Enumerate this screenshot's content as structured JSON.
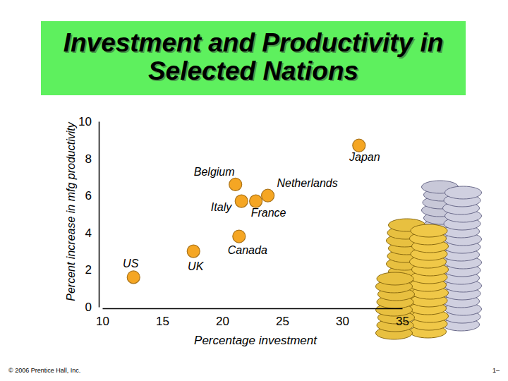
{
  "chart_data": {
    "type": "scatter",
    "title": "Investment and Productivity in Selected Nations",
    "x_label": "Percentage investment",
    "y_label": "Percent increase in mfg productivity",
    "labels": [
      "US",
      "UK",
      "Canada",
      "Italy",
      "Belgium",
      "France",
      "Netherlands",
      "Japan"
    ],
    "x": [
      12.6,
      17.6,
      21.4,
      21.6,
      21.1,
      22.8,
      23.8,
      31.4
    ],
    "values": [
      1.6,
      3.0,
      3.8,
      5.7,
      6.6,
      5.7,
      6.0,
      8.7
    ],
    "color": "#f5a623",
    "marker": "circle",
    "xlim": [
      10,
      35
    ],
    "xticks": [
      10,
      15,
      20,
      25,
      30,
      35
    ],
    "ylim": [
      0,
      10
    ],
    "yticks": [
      0,
      2,
      4,
      6,
      8,
      10
    ],
    "grid": false,
    "annotations": [
      "© 2006 Prentice Hall, Inc.",
      "1–"
    ]
  }
}
